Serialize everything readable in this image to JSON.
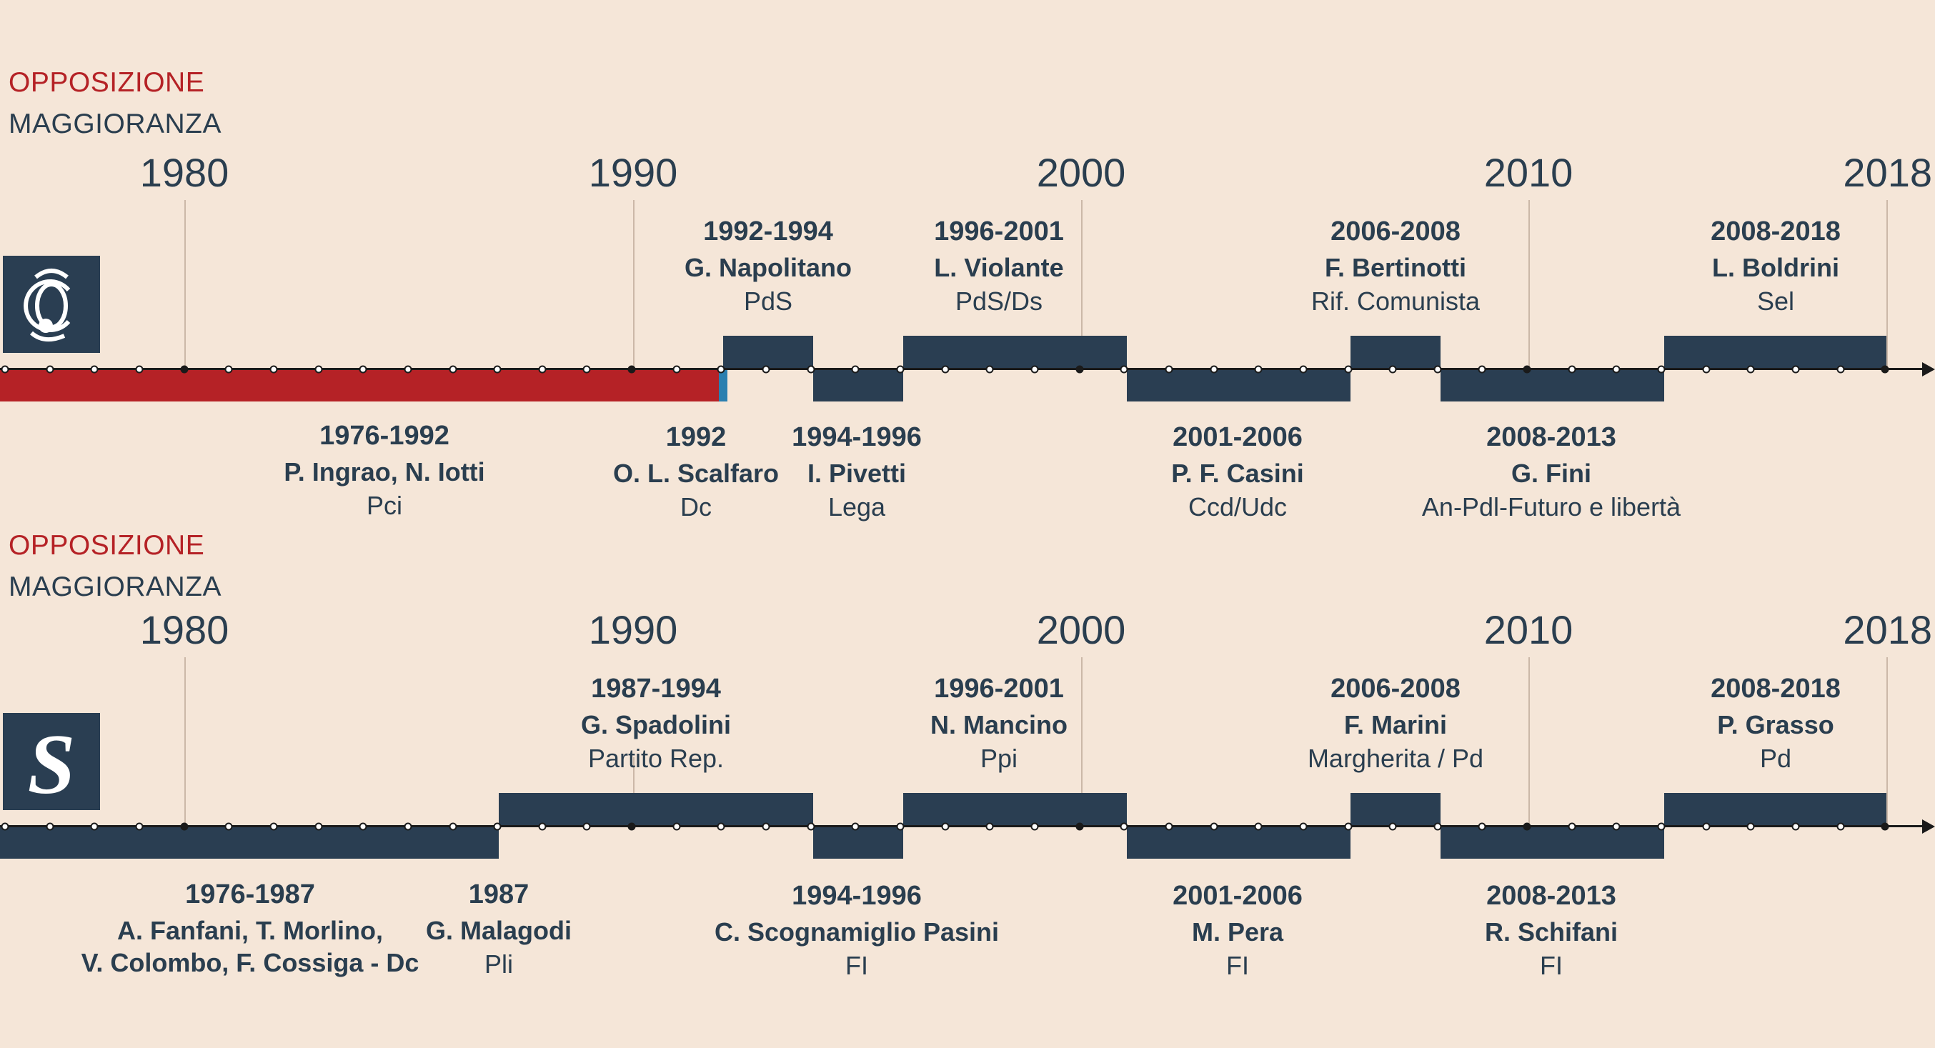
{
  "legend": {
    "opposition": "OPPOSIZIONE",
    "majority": "MAGGIORANZA"
  },
  "years": [
    "1980",
    "1990",
    "2000",
    "2010",
    "2018"
  ],
  "camera": {
    "logo_icon": "camera-emblem-icon",
    "above": [
      {
        "years": "1992-1994",
        "name": "G. Napolitano",
        "party": "PdS"
      },
      {
        "years": "1996-2001",
        "name": "L. Violante",
        "party": "PdS/Ds"
      },
      {
        "years": "2006-2008",
        "name": "F. Bertinotti",
        "party": "Rif. Comunista"
      },
      {
        "years": "2008-2018",
        "name": "L. Boldrini",
        "party": "Sel"
      }
    ],
    "below": [
      {
        "years": "1976-1992",
        "name": "P. Ingrao, N. Iotti",
        "party": "Pci"
      },
      {
        "years": "1992",
        "name": "O. L. Scalfaro",
        "party": "Dc"
      },
      {
        "years": "1994-1996",
        "name": "I. Pivetti",
        "party": "Lega"
      },
      {
        "years": "2001-2006",
        "name": "P. F. Casini",
        "party": "Ccd/Udc"
      },
      {
        "years": "2008-2013",
        "name": "G. Fini",
        "party": "An-Pdl-Futuro e libertà"
      }
    ]
  },
  "senato": {
    "logo_icon": "senato-s-emblem-icon",
    "logo_letter": "S",
    "above": [
      {
        "years": "1987-1994",
        "name": "G. Spadolini",
        "party": "Partito Rep."
      },
      {
        "years": "1996-2001",
        "name": "N. Mancino",
        "party": "Ppi"
      },
      {
        "years": "2006-2008",
        "name": "F. Marini",
        "party": "Margherita / Pd"
      },
      {
        "years": "2008-2018",
        "name": "P. Grasso",
        "party": "Pd"
      }
    ],
    "below": [
      {
        "years": "1976-1987",
        "name": "A. Fanfani, T. Morlino,",
        "party": "V. Colombo, F. Cossiga - Dc"
      },
      {
        "years": "1987",
        "name": "G. Malagodi",
        "party": "Pli"
      },
      {
        "years": "1994-1996",
        "name": "C. Scognamiglio Pasini",
        "party": "FI"
      },
      {
        "years": "2001-2006",
        "name": "M. Pera",
        "party": "FI"
      },
      {
        "years": "2008-2013",
        "name": "R. Schifani",
        "party": "FI"
      }
    ]
  },
  "colors": {
    "opposition": "#b52226",
    "majority": "#2a3e52",
    "background": "#f5e6d8"
  }
}
